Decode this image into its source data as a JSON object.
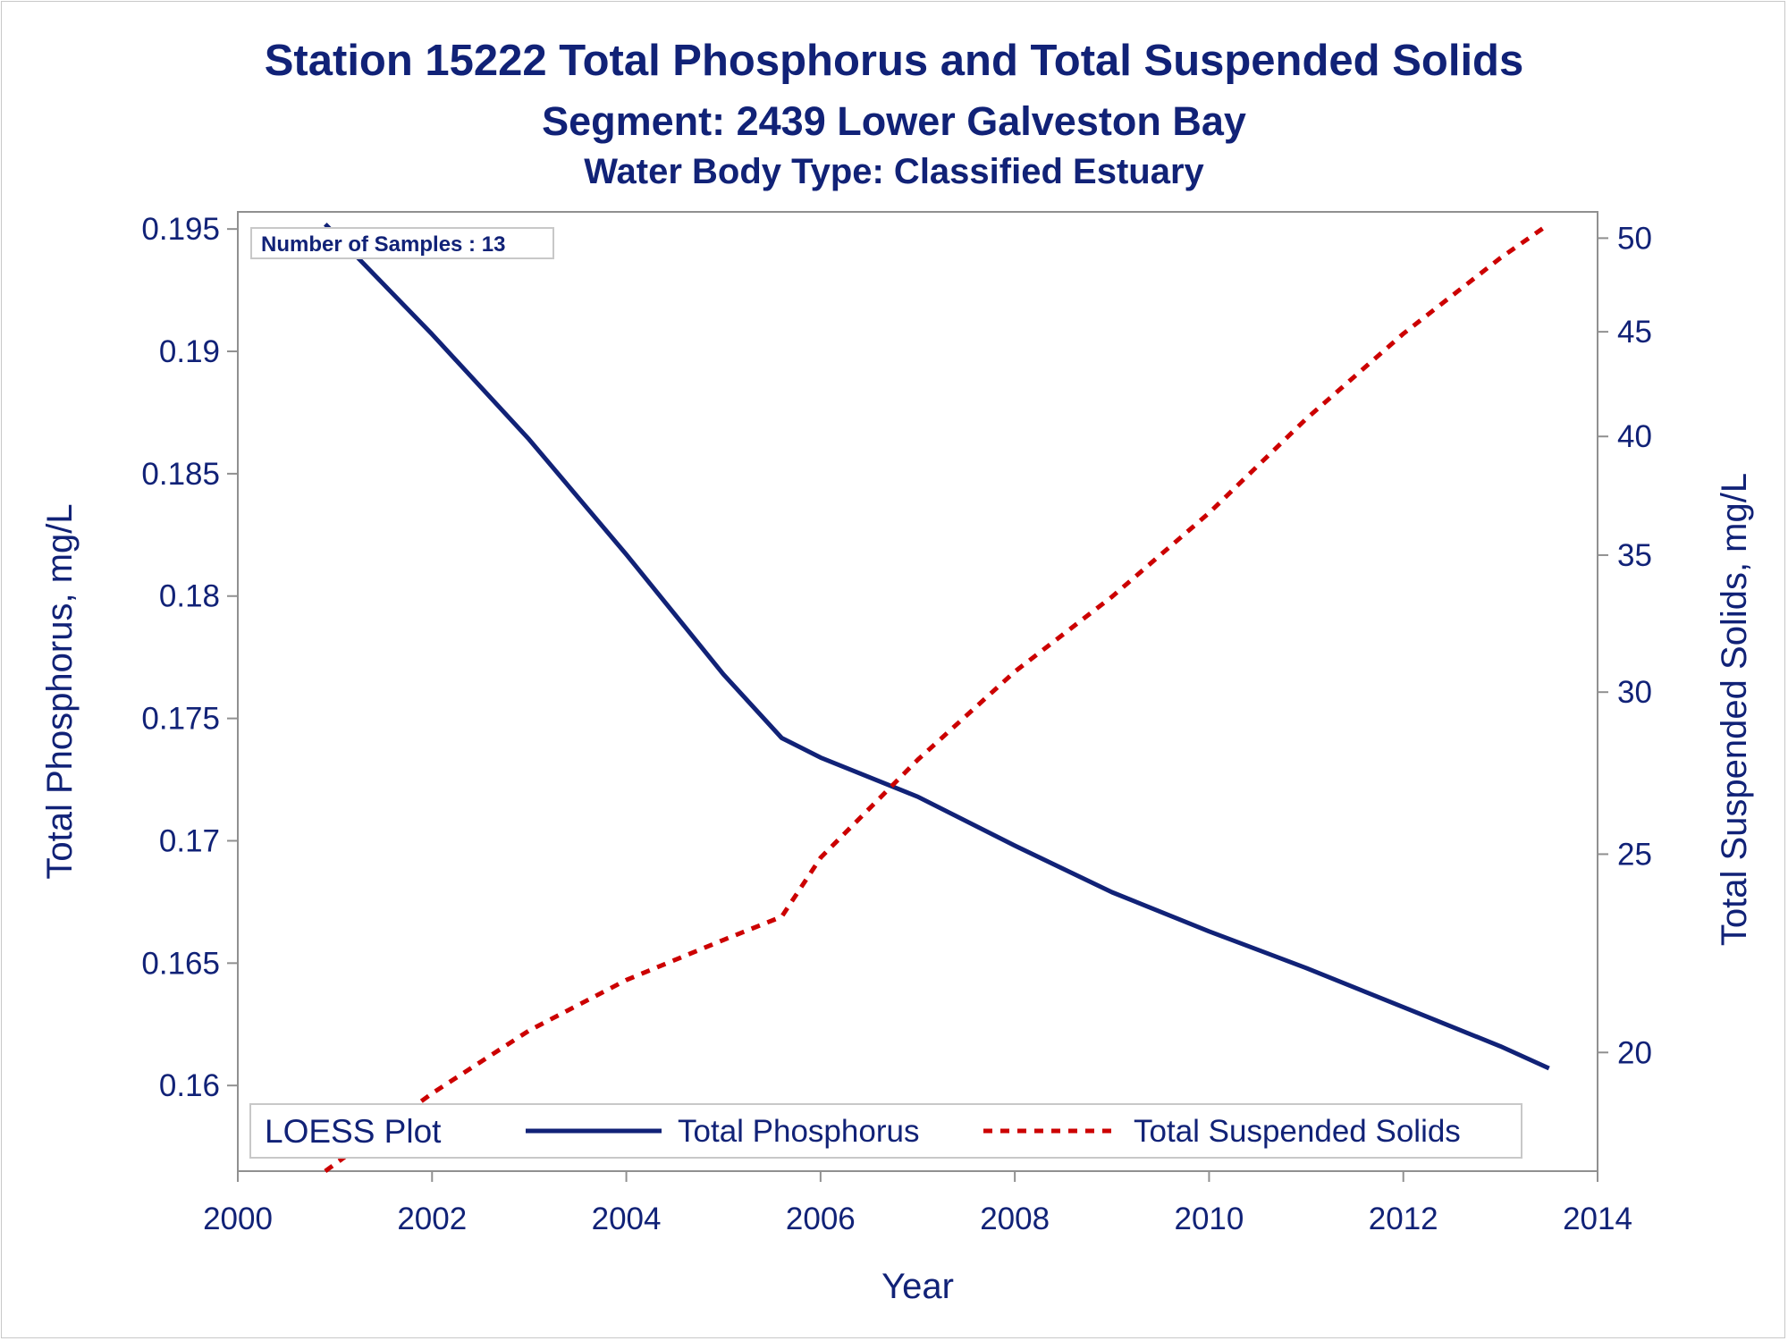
{
  "chart_data": {
    "type": "line",
    "title": "Station 15222  Total Phosphorus and Total Suspended Solids",
    "subtitle": "Segment: 2439  Lower Galveston Bay",
    "subtitle2": "Water Body Type: Classified Estuary",
    "xlabel": "Year",
    "ylabel_left": "Total Phosphorus, mg/L",
    "ylabel_right": "Total Suspended Solids, mg/L",
    "xlim": [
      2000,
      2014
    ],
    "ylim_left": [
      0.1565,
      0.1957
    ],
    "ylim_right": [
      17.5,
      51.5
    ],
    "yscale_right": "log",
    "x_ticks": [
      "2000",
      "2002",
      "2004",
      "2006",
      "2008",
      "2010",
      "2012",
      "2014"
    ],
    "y_left_ticks": [
      "0.16",
      "0.165",
      "0.17",
      "0.175",
      "0.18",
      "0.185",
      "0.19",
      "0.195"
    ],
    "y_right_ticks": [
      "20",
      "25",
      "30",
      "35",
      "40",
      "45",
      "50"
    ],
    "annotation": "Number of Samples : 13",
    "legend": {
      "title": "LOESS Plot",
      "placement": "bottom inside",
      "entries": [
        "Total Phosphorus",
        "Total Suspended Solids"
      ]
    },
    "series": [
      {
        "name": "Total Phosphorus",
        "axis": "left",
        "color": "#112277",
        "style": "solid",
        "x": [
          2000.9,
          2002,
          2003,
          2004,
          2005,
          2005.6,
          2006,
          2007,
          2008,
          2009,
          2010,
          2011,
          2012,
          2013,
          2013.5
        ],
        "y": [
          0.1952,
          0.1907,
          0.1864,
          0.1817,
          0.1768,
          0.1742,
          0.1734,
          0.1718,
          0.1698,
          0.1679,
          0.1663,
          0.1648,
          0.1632,
          0.1616,
          0.1607
        ]
      },
      {
        "name": "Total Suspended Solids",
        "axis": "right",
        "color": "#cc0000",
        "style": "dashed",
        "x": [
          2000.9,
          2002,
          2003,
          2004,
          2005,
          2005.6,
          2006,
          2007,
          2008,
          2009,
          2010,
          2011,
          2012,
          2013,
          2013.5
        ],
        "y": [
          17.5,
          19.1,
          20.5,
          21.7,
          22.7,
          23.3,
          24.9,
          27.8,
          30.7,
          33.4,
          36.7,
          40.8,
          44.9,
          48.9,
          50.8
        ]
      }
    ]
  }
}
